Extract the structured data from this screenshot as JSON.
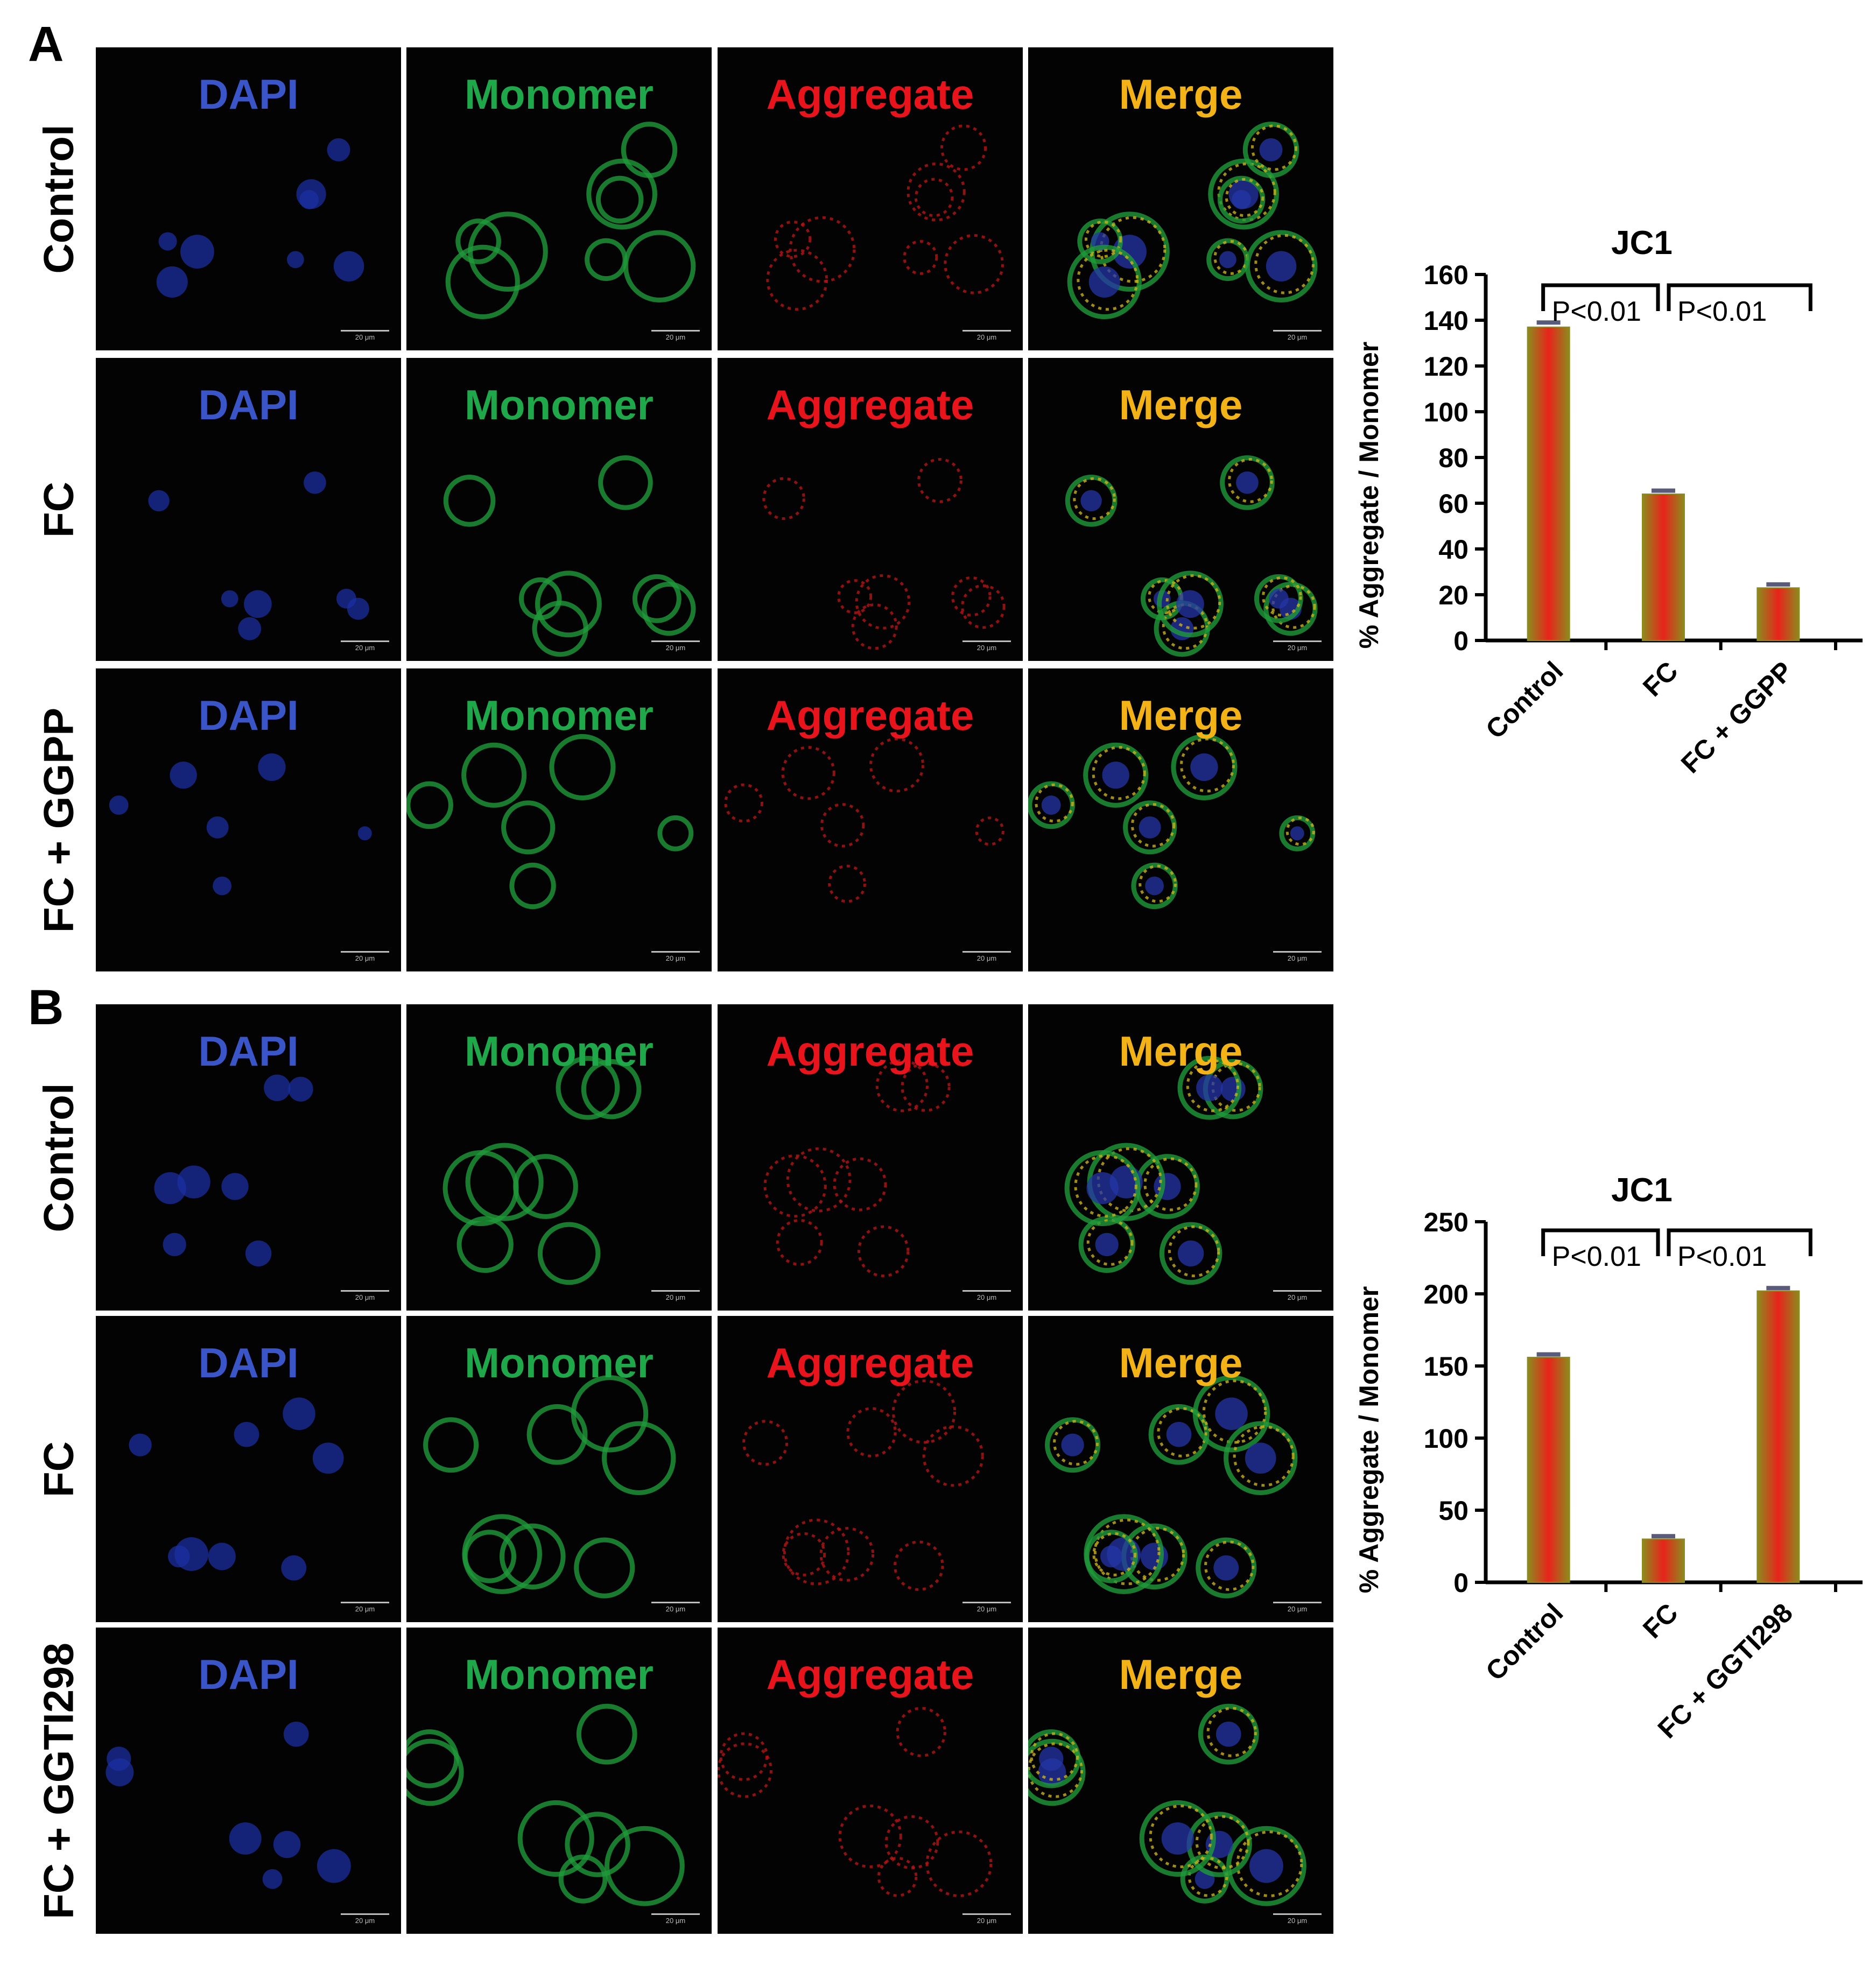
{
  "figure": {
    "panels": [
      {
        "letter": "A",
        "rows": [
          {
            "label": "Control",
            "tiles": [
              {
                "label": "DAPI"
              },
              {
                "label": "Monomer"
              },
              {
                "label": "Aggregate"
              },
              {
                "label": "Merge"
              }
            ]
          },
          {
            "label": "FC",
            "tiles": [
              {
                "label": "DAPI"
              },
              {
                "label": "Monomer"
              },
              {
                "label": "Aggregate"
              },
              {
                "label": "Merge"
              }
            ]
          },
          {
            "label": "FC  + GGPP",
            "tiles": [
              {
                "label": "DAPI"
              },
              {
                "label": "Monomer"
              },
              {
                "label": "Aggregate"
              },
              {
                "label": "Merge"
              }
            ]
          }
        ]
      },
      {
        "letter": "B",
        "rows": [
          {
            "label": "Control",
            "tiles": [
              {
                "label": "DAPI"
              },
              {
                "label": "Monomer"
              },
              {
                "label": "Aggregate"
              },
              {
                "label": "Merge"
              }
            ]
          },
          {
            "label": "FC",
            "tiles": [
              {
                "label": "DAPI"
              },
              {
                "label": "Monomer"
              },
              {
                "label": "Aggregate"
              },
              {
                "label": "Merge"
              }
            ]
          },
          {
            "label": "FC  + GGTI298",
            "tiles": [
              {
                "label": "DAPI"
              },
              {
                "label": "Monomer"
              },
              {
                "label": "Aggregate"
              },
              {
                "label": "Merge"
              }
            ]
          }
        ]
      }
    ],
    "scale_bar_text": "20 μm",
    "channel_colors": {
      "DAPI": "#3a55c8",
      "Monomer": "#1fa84a",
      "Aggregate": "#e8131b",
      "Merge": "#f3b316"
    }
  },
  "chart_data": [
    {
      "type": "bar",
      "title": "JC1",
      "ylabel": "% Aggregate / Monomer",
      "xlabel": "",
      "categories": [
        "Control",
        "FC",
        "FC + GGPP"
      ],
      "values": [
        137,
        64,
        23
      ],
      "error": [
        2,
        1.5,
        1.5
      ],
      "ylim": [
        0,
        160
      ],
      "yticks": [
        0,
        20,
        40,
        60,
        80,
        100,
        120,
        140,
        160
      ],
      "grid": false,
      "annotations": [
        {
          "text": "P<0.01",
          "from": "Control",
          "to": "FC"
        },
        {
          "text": "P<0.01",
          "from": "FC",
          "to": "FC + GGPP"
        }
      ],
      "bar_color": "#e8231b",
      "edge_color": "#8c8c1e"
    },
    {
      "type": "bar",
      "title": "JC1",
      "ylabel": "% Aggregate / Monomer",
      "xlabel": "",
      "categories": [
        "Control",
        "FC",
        "FC + GGTI298"
      ],
      "values": [
        156,
        30,
        202
      ],
      "error": [
        2,
        2,
        2
      ],
      "ylim": [
        0,
        250
      ],
      "yticks": [
        0,
        50,
        100,
        150,
        200,
        250
      ],
      "grid": false,
      "annotations": [
        {
          "text": "P<0.01",
          "from": "Control",
          "to": "FC"
        },
        {
          "text": "P<0.01",
          "from": "FC",
          "to": "FC + GGTI298"
        }
      ],
      "bar_color": "#e8231b",
      "edge_color": "#8c8c1e"
    }
  ]
}
